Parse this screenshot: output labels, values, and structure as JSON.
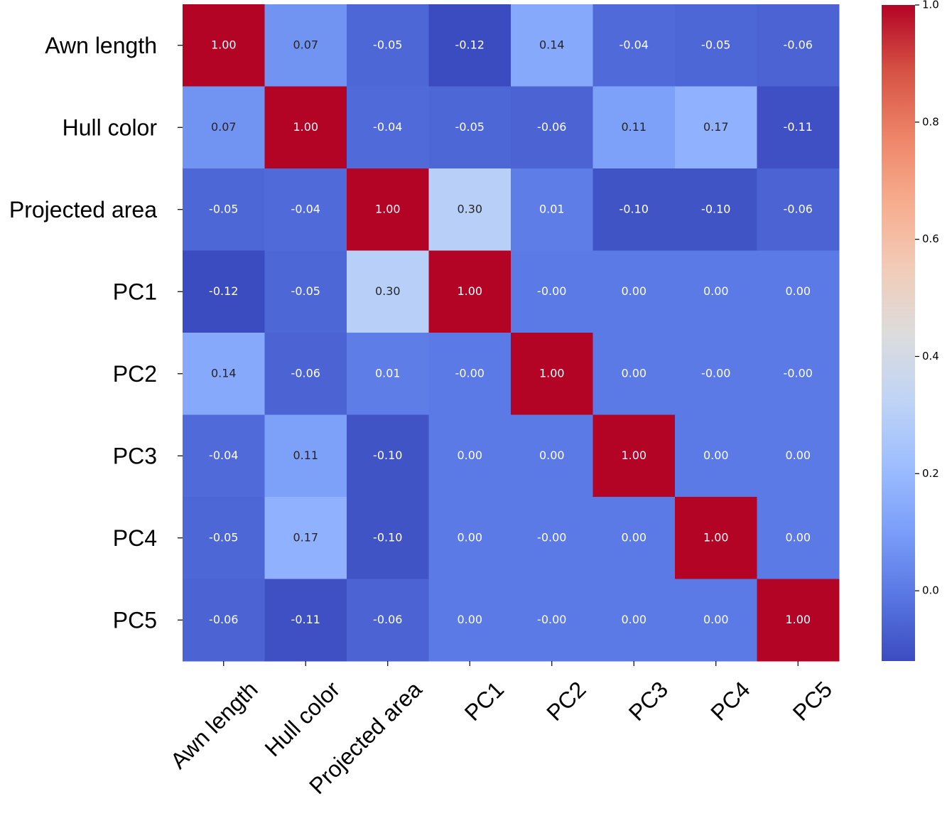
{
  "chart_data": {
    "type": "heatmap",
    "x_categories": [
      "Awn length",
      "Hull color",
      "Projected area",
      "PC1",
      "PC2",
      "PC3",
      "PC4",
      "PC5"
    ],
    "y_categories": [
      "Awn length",
      "Hull color",
      "Projected area",
      "PC1",
      "PC2",
      "PC3",
      "PC4",
      "PC5"
    ],
    "values": [
      [
        1,
        0.07,
        -0.05,
        -0.12,
        0.14,
        -0.04,
        -0.05,
        -0.06
      ],
      [
        0.07,
        1,
        -0.04,
        -0.05,
        -0.06,
        0.11,
        0.17,
        -0.11
      ],
      [
        -0.05,
        -0.04,
        1,
        0.3,
        0.01,
        -0.1,
        -0.1,
        -0.06
      ],
      [
        -0.12,
        -0.05,
        0.3,
        1,
        0,
        0,
        0,
        0
      ],
      [
        0.14,
        -0.06,
        0.01,
        0,
        1,
        0,
        0,
        0
      ],
      [
        -0.04,
        0.11,
        -0.1,
        0,
        0,
        1,
        0,
        0
      ],
      [
        -0.05,
        0.17,
        -0.1,
        0,
        0,
        0,
        1,
        0
      ],
      [
        -0.06,
        -0.11,
        -0.06,
        0,
        0,
        0,
        0,
        1
      ]
    ],
    "value_labels": [
      [
        "1.00",
        "0.07",
        "-0.05",
        "-0.12",
        "0.14",
        "-0.04",
        "-0.05",
        "-0.06"
      ],
      [
        "0.07",
        "1.00",
        "-0.04",
        "-0.05",
        "-0.06",
        "0.11",
        "0.17",
        "-0.11"
      ],
      [
        "-0.05",
        "-0.04",
        "1.00",
        "0.30",
        "0.01",
        "-0.10",
        "-0.10",
        "-0.06"
      ],
      [
        "-0.12",
        "-0.05",
        "0.30",
        "1.00",
        "-0.00",
        "0.00",
        "0.00",
        "0.00"
      ],
      [
        "0.14",
        "-0.06",
        "0.01",
        "-0.00",
        "1.00",
        "0.00",
        "-0.00",
        "-0.00"
      ],
      [
        "-0.04",
        "0.11",
        "-0.10",
        "0.00",
        "0.00",
        "1.00",
        "0.00",
        "0.00"
      ],
      [
        "-0.05",
        "0.17",
        "-0.10",
        "0.00",
        "-0.00",
        "0.00",
        "1.00",
        "0.00"
      ],
      [
        "-0.06",
        "-0.11",
        "-0.06",
        "0.00",
        "-0.00",
        "0.00",
        "0.00",
        "1.00"
      ]
    ],
    "clim": [
      -0.12,
      1.0
    ],
    "colorbar_ticks": [
      {
        "value": 0,
        "label": "0.0"
      },
      0.2,
      0.4,
      0.6,
      0.8,
      {
        "value": 1,
        "label": "1.0"
      }
    ],
    "colormap": [
      "#3b4cc0",
      "#5977e3",
      "#7b9ff9",
      "#9ebeff",
      "#c0d4f5",
      "#dddcdc",
      "#f2cbb7",
      "#f7ac8e",
      "#ee8468",
      "#d65244",
      "#b40426"
    ]
  }
}
